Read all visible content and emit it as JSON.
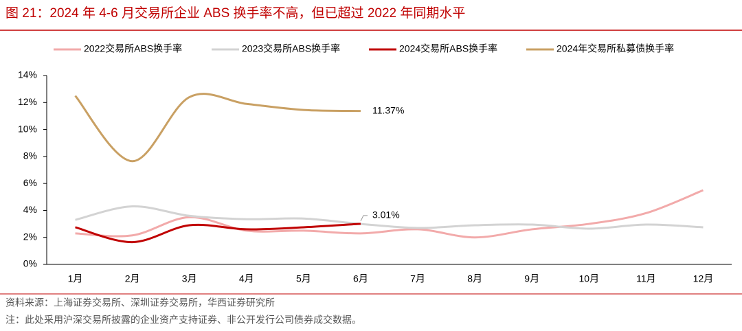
{
  "chart_data": {
    "type": "line",
    "title": "图 21：2024 年 4-6 月交易所企业 ABS 换手率不高，但已超过 2022 年同期水平",
    "categories": [
      "1月",
      "2月",
      "3月",
      "4月",
      "5月",
      "6月",
      "7月",
      "8月",
      "9月",
      "10月",
      "11月",
      "12月"
    ],
    "series": [
      {
        "name": "2022交易所ABS换手率",
        "color": "#f2aaaa",
        "values": [
          2.3,
          2.15,
          3.5,
          2.5,
          2.5,
          2.3,
          2.6,
          2.0,
          2.6,
          3.0,
          3.8,
          5.5
        ]
      },
      {
        "name": "2023交易所ABS换手率",
        "color": "#d3d3d3",
        "values": [
          3.3,
          4.3,
          3.6,
          3.35,
          3.4,
          3.0,
          2.7,
          2.9,
          2.95,
          2.65,
          2.95,
          2.75
        ]
      },
      {
        "name": "2024交易所ABS换手率",
        "color": "#c00000",
        "values": [
          2.75,
          1.65,
          2.9,
          2.6,
          2.75,
          3.01,
          null,
          null,
          null,
          null,
          null,
          null
        ],
        "value_labels": [
          null,
          null,
          null,
          null,
          null,
          "3.01%",
          null,
          null,
          null,
          null,
          null,
          null
        ]
      },
      {
        "name": "2024年交易所私募债换手率",
        "color": "#c9a063",
        "values": [
          12.5,
          7.65,
          12.4,
          11.9,
          11.45,
          11.37,
          null,
          null,
          null,
          null,
          null,
          null
        ],
        "value_labels": [
          null,
          null,
          null,
          null,
          null,
          "11.37%",
          null,
          null,
          null,
          null,
          null,
          null
        ]
      }
    ],
    "ylim": [
      0,
      14
    ],
    "yticks": [
      {
        "value": 0,
        "label": "0%"
      },
      {
        "value": 2,
        "label": "2%"
      },
      {
        "value": 4,
        "label": "4%"
      },
      {
        "value": 6,
        "label": "6%"
      },
      {
        "value": 8,
        "label": "8%"
      },
      {
        "value": 10,
        "label": "10%"
      },
      {
        "value": 12,
        "label": "12%"
      },
      {
        "value": 14,
        "label": "14%"
      }
    ],
    "grid": false,
    "legend": "top",
    "source": "资料来源：上海证券交易所、深圳证券交易所，华西证券研究所",
    "note": "注：此处采用沪深交易所披露的企业资产支持证券、非公开发行公司债券成交数据。"
  }
}
